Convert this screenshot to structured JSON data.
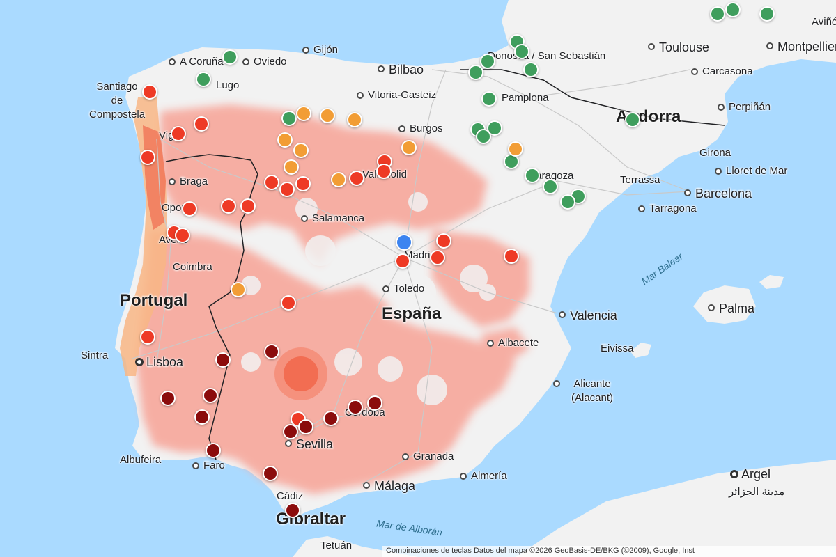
{
  "map": {
    "colors": {
      "sea": "#aadaff",
      "land": "#f2f2f2",
      "heat": "#f7a79b",
      "coast_fire": "#f06a4f",
      "border": "#202124",
      "green": "#3f9e5d",
      "orange": "#f29d35",
      "red": "#ee3a25",
      "darkred": "#8b0c0c",
      "user": "#3c84f0"
    },
    "countries": [
      {
        "name": "Portugal"
      },
      {
        "name": "España"
      },
      {
        "name": "Andorra"
      },
      {
        "name": "Gibraltar"
      }
    ],
    "seas": [
      {
        "name": "Mar Balear"
      },
      {
        "name": "Mar de Alborán"
      }
    ],
    "cities": [
      {
        "name": "A Coruña"
      },
      {
        "name": "Oviedo"
      },
      {
        "name": "Gijón"
      },
      {
        "name": "Lugo"
      },
      {
        "name": "Santiago de Compostela"
      },
      {
        "name": "Vigo"
      },
      {
        "name": "Braga"
      },
      {
        "name": "Oporto"
      },
      {
        "name": "Aveiro"
      },
      {
        "name": "Coimbra"
      },
      {
        "name": "Sintra"
      },
      {
        "name": "Lisboa"
      },
      {
        "name": "Albufeira"
      },
      {
        "name": "Faro"
      },
      {
        "name": "Bilbao"
      },
      {
        "name": "Vitoria-Gasteiz"
      },
      {
        "name": "Donostia / San Sebastián"
      },
      {
        "name": "Pamplona"
      },
      {
        "name": "Burgos"
      },
      {
        "name": "Valladolid"
      },
      {
        "name": "Salamanca"
      },
      {
        "name": "Madrid"
      },
      {
        "name": "Toledo"
      },
      {
        "name": "Zaragoza"
      },
      {
        "name": "Terrassa"
      },
      {
        "name": "Barcelona"
      },
      {
        "name": "Tarragona"
      },
      {
        "name": "Girona"
      },
      {
        "name": "Lloret de Mar"
      },
      {
        "name": "Toulouse"
      },
      {
        "name": "Montpellier"
      },
      {
        "name": "Carcasona"
      },
      {
        "name": "Perpiñán"
      },
      {
        "name": "Valencia"
      },
      {
        "name": "Albacete"
      },
      {
        "name": "Alicante (Alacant)"
      },
      {
        "name": "Eivissa"
      },
      {
        "name": "Palma"
      },
      {
        "name": "Córdoba"
      },
      {
        "name": "Sevilla"
      },
      {
        "name": "Granada"
      },
      {
        "name": "Almería"
      },
      {
        "name": "Málaga"
      },
      {
        "name": "Cádiz"
      },
      {
        "name": "Tetuán"
      },
      {
        "name": "Argel"
      },
      {
        "name": "مدينة الجزائر"
      },
      {
        "name": "Aviñón"
      }
    ],
    "attribution": "Combinaciones de teclas   Datos del mapa ©2026 GeoBasis-DE/BKG (©2009), Google, Inst"
  }
}
